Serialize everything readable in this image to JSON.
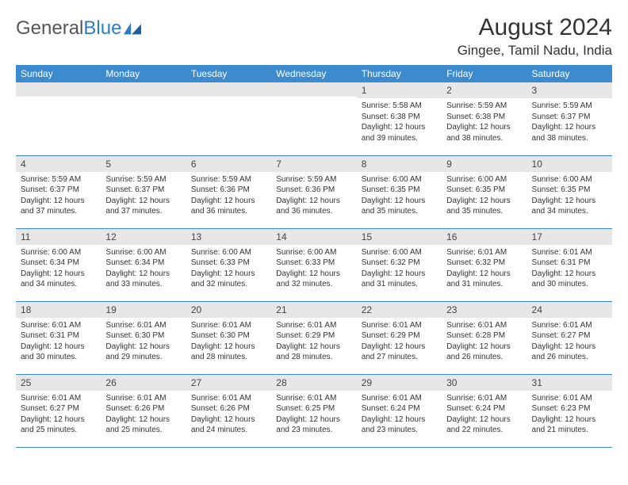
{
  "brand": {
    "part1": "General",
    "part2": "Blue"
  },
  "title": "August 2024",
  "location": "Gingee, Tamil Nadu, India",
  "colors": {
    "header_bg": "#3d8bcf",
    "header_text": "#ffffff",
    "row_bg": "#e7e7e7",
    "border": "#3d8bcf",
    "text": "#333333"
  },
  "weekdays": [
    "Sunday",
    "Monday",
    "Tuesday",
    "Wednesday",
    "Thursday",
    "Friday",
    "Saturday"
  ],
  "weeks": [
    [
      {
        "day": "",
        "sunrise": "",
        "sunset": "",
        "daylight": ""
      },
      {
        "day": "",
        "sunrise": "",
        "sunset": "",
        "daylight": ""
      },
      {
        "day": "",
        "sunrise": "",
        "sunset": "",
        "daylight": ""
      },
      {
        "day": "",
        "sunrise": "",
        "sunset": "",
        "daylight": ""
      },
      {
        "day": "1",
        "sunrise": "Sunrise: 5:58 AM",
        "sunset": "Sunset: 6:38 PM",
        "daylight": "Daylight: 12 hours and 39 minutes."
      },
      {
        "day": "2",
        "sunrise": "Sunrise: 5:59 AM",
        "sunset": "Sunset: 6:38 PM",
        "daylight": "Daylight: 12 hours and 38 minutes."
      },
      {
        "day": "3",
        "sunrise": "Sunrise: 5:59 AM",
        "sunset": "Sunset: 6:37 PM",
        "daylight": "Daylight: 12 hours and 38 minutes."
      }
    ],
    [
      {
        "day": "4",
        "sunrise": "Sunrise: 5:59 AM",
        "sunset": "Sunset: 6:37 PM",
        "daylight": "Daylight: 12 hours and 37 minutes."
      },
      {
        "day": "5",
        "sunrise": "Sunrise: 5:59 AM",
        "sunset": "Sunset: 6:37 PM",
        "daylight": "Daylight: 12 hours and 37 minutes."
      },
      {
        "day": "6",
        "sunrise": "Sunrise: 5:59 AM",
        "sunset": "Sunset: 6:36 PM",
        "daylight": "Daylight: 12 hours and 36 minutes."
      },
      {
        "day": "7",
        "sunrise": "Sunrise: 5:59 AM",
        "sunset": "Sunset: 6:36 PM",
        "daylight": "Daylight: 12 hours and 36 minutes."
      },
      {
        "day": "8",
        "sunrise": "Sunrise: 6:00 AM",
        "sunset": "Sunset: 6:35 PM",
        "daylight": "Daylight: 12 hours and 35 minutes."
      },
      {
        "day": "9",
        "sunrise": "Sunrise: 6:00 AM",
        "sunset": "Sunset: 6:35 PM",
        "daylight": "Daylight: 12 hours and 35 minutes."
      },
      {
        "day": "10",
        "sunrise": "Sunrise: 6:00 AM",
        "sunset": "Sunset: 6:35 PM",
        "daylight": "Daylight: 12 hours and 34 minutes."
      }
    ],
    [
      {
        "day": "11",
        "sunrise": "Sunrise: 6:00 AM",
        "sunset": "Sunset: 6:34 PM",
        "daylight": "Daylight: 12 hours and 34 minutes."
      },
      {
        "day": "12",
        "sunrise": "Sunrise: 6:00 AM",
        "sunset": "Sunset: 6:34 PM",
        "daylight": "Daylight: 12 hours and 33 minutes."
      },
      {
        "day": "13",
        "sunrise": "Sunrise: 6:00 AM",
        "sunset": "Sunset: 6:33 PM",
        "daylight": "Daylight: 12 hours and 32 minutes."
      },
      {
        "day": "14",
        "sunrise": "Sunrise: 6:00 AM",
        "sunset": "Sunset: 6:33 PM",
        "daylight": "Daylight: 12 hours and 32 minutes."
      },
      {
        "day": "15",
        "sunrise": "Sunrise: 6:00 AM",
        "sunset": "Sunset: 6:32 PM",
        "daylight": "Daylight: 12 hours and 31 minutes."
      },
      {
        "day": "16",
        "sunrise": "Sunrise: 6:01 AM",
        "sunset": "Sunset: 6:32 PM",
        "daylight": "Daylight: 12 hours and 31 minutes."
      },
      {
        "day": "17",
        "sunrise": "Sunrise: 6:01 AM",
        "sunset": "Sunset: 6:31 PM",
        "daylight": "Daylight: 12 hours and 30 minutes."
      }
    ],
    [
      {
        "day": "18",
        "sunrise": "Sunrise: 6:01 AM",
        "sunset": "Sunset: 6:31 PM",
        "daylight": "Daylight: 12 hours and 30 minutes."
      },
      {
        "day": "19",
        "sunrise": "Sunrise: 6:01 AM",
        "sunset": "Sunset: 6:30 PM",
        "daylight": "Daylight: 12 hours and 29 minutes."
      },
      {
        "day": "20",
        "sunrise": "Sunrise: 6:01 AM",
        "sunset": "Sunset: 6:30 PM",
        "daylight": "Daylight: 12 hours and 28 minutes."
      },
      {
        "day": "21",
        "sunrise": "Sunrise: 6:01 AM",
        "sunset": "Sunset: 6:29 PM",
        "daylight": "Daylight: 12 hours and 28 minutes."
      },
      {
        "day": "22",
        "sunrise": "Sunrise: 6:01 AM",
        "sunset": "Sunset: 6:29 PM",
        "daylight": "Daylight: 12 hours and 27 minutes."
      },
      {
        "day": "23",
        "sunrise": "Sunrise: 6:01 AM",
        "sunset": "Sunset: 6:28 PM",
        "daylight": "Daylight: 12 hours and 26 minutes."
      },
      {
        "day": "24",
        "sunrise": "Sunrise: 6:01 AM",
        "sunset": "Sunset: 6:27 PM",
        "daylight": "Daylight: 12 hours and 26 minutes."
      }
    ],
    [
      {
        "day": "25",
        "sunrise": "Sunrise: 6:01 AM",
        "sunset": "Sunset: 6:27 PM",
        "daylight": "Daylight: 12 hours and 25 minutes."
      },
      {
        "day": "26",
        "sunrise": "Sunrise: 6:01 AM",
        "sunset": "Sunset: 6:26 PM",
        "daylight": "Daylight: 12 hours and 25 minutes."
      },
      {
        "day": "27",
        "sunrise": "Sunrise: 6:01 AM",
        "sunset": "Sunset: 6:26 PM",
        "daylight": "Daylight: 12 hours and 24 minutes."
      },
      {
        "day": "28",
        "sunrise": "Sunrise: 6:01 AM",
        "sunset": "Sunset: 6:25 PM",
        "daylight": "Daylight: 12 hours and 23 minutes."
      },
      {
        "day": "29",
        "sunrise": "Sunrise: 6:01 AM",
        "sunset": "Sunset: 6:24 PM",
        "daylight": "Daylight: 12 hours and 23 minutes."
      },
      {
        "day": "30",
        "sunrise": "Sunrise: 6:01 AM",
        "sunset": "Sunset: 6:24 PM",
        "daylight": "Daylight: 12 hours and 22 minutes."
      },
      {
        "day": "31",
        "sunrise": "Sunrise: 6:01 AM",
        "sunset": "Sunset: 6:23 PM",
        "daylight": "Daylight: 12 hours and 21 minutes."
      }
    ]
  ]
}
